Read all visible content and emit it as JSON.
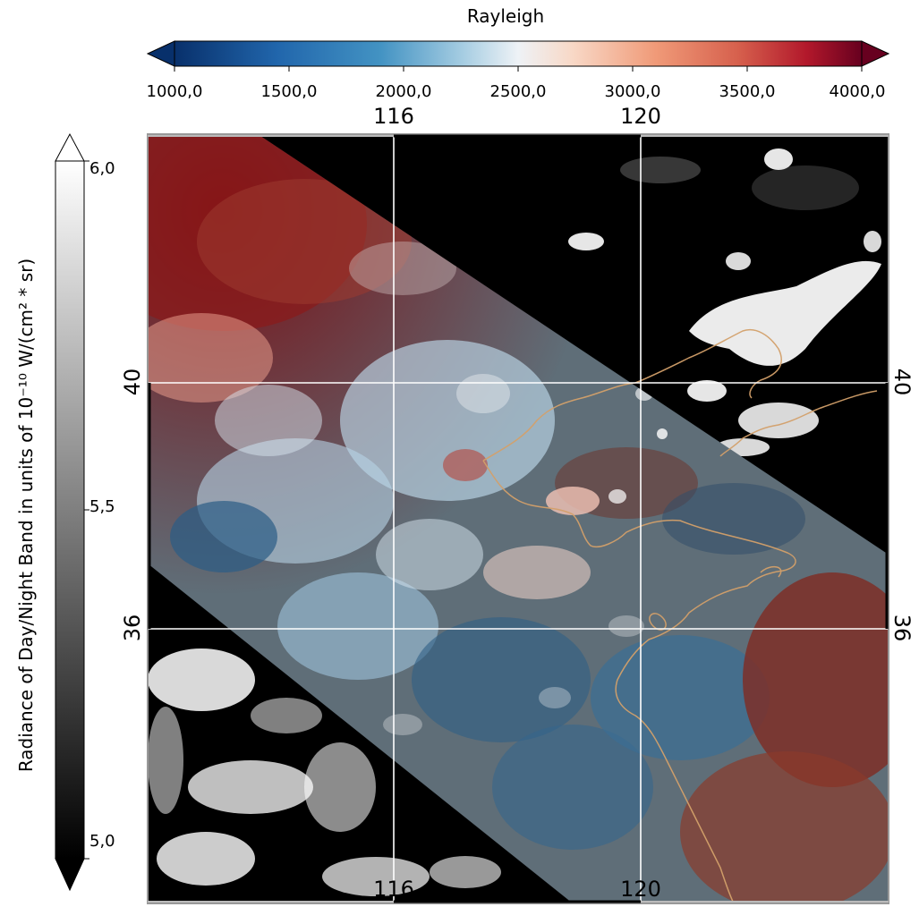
{
  "top_colorbar": {
    "title": "Rayleigh",
    "ticks": [
      "1000,0",
      "1500,0",
      "2000,0",
      "2500,0",
      "3000,0",
      "3500,0",
      "4000,0"
    ],
    "range": [
      1000,
      4000
    ],
    "colors": [
      "#08306b",
      "#2166ac",
      "#4393c3",
      "#92c5de",
      "#e6eef5",
      "#f7d5c4",
      "#f4a582",
      "#d6604d",
      "#b2182b",
      "#67001f"
    ]
  },
  "left_colorbar": {
    "title": "Radiance of Day/Night Band in units of 10⁻¹⁰ W/(cm² * sr)",
    "ticks": [
      "6,0",
      "5,5",
      "5,0"
    ],
    "range": [
      5.0,
      6.0
    ],
    "colors": [
      "#000000",
      "#ffffff"
    ]
  },
  "map": {
    "lon_labels_top": [
      "116",
      "120"
    ],
    "lon_labels_bottom": [
      "116",
      "120"
    ],
    "lat_labels_left": [
      "40",
      "36"
    ],
    "lat_labels_right": [
      "40",
      "36"
    ],
    "lon_lines": [
      116,
      120
    ],
    "lat_lines": [
      40,
      36
    ],
    "coastline_color": "#d3a06a",
    "grid_color": "#ffffff"
  }
}
